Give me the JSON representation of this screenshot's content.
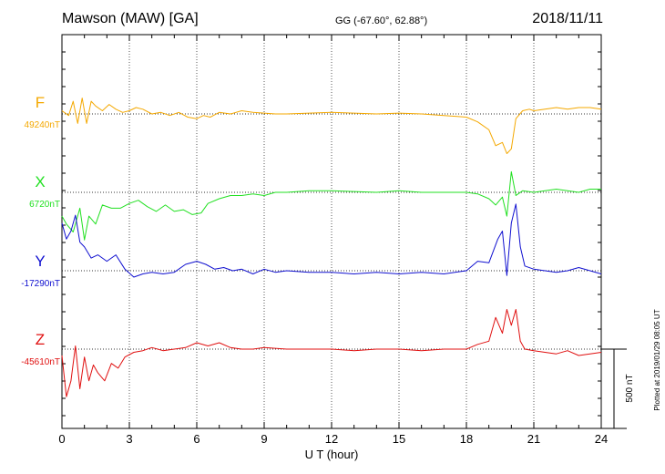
{
  "header": {
    "station": "Mawson (MAW)  [GA]",
    "coords": "GG (-67.60°,  62.88°)",
    "date": "2018/11/11"
  },
  "footer": {
    "plotted": "Plotted at 2019/01/29 08:05 UT",
    "scale_label": "500 nT"
  },
  "colors": {
    "F": "#f4a800",
    "X": "#22e022",
    "Y": "#1010d0",
    "Z": "#e01010"
  },
  "chart_data": {
    "type": "line",
    "xlabel": "U T (hour)",
    "xlim": [
      0,
      24
    ],
    "x_ticks": [
      "0",
      "3",
      "6",
      "9",
      "12",
      "15",
      "18",
      "21",
      "24"
    ],
    "scale_nT": 500,
    "series": [
      {
        "name": "F",
        "baseline_label": "49240nT",
        "x": [
          0,
          0.3,
          0.5,
          0.7,
          0.9,
          1.1,
          1.3,
          1.5,
          1.8,
          2.1,
          2.4,
          2.7,
          3.0,
          3.3,
          3.6,
          4.0,
          4.4,
          4.8,
          5.2,
          5.6,
          6.0,
          6.3,
          6.6,
          7.0,
          7.5,
          8.0,
          8.5,
          9.0,
          9.5,
          10,
          11,
          12,
          13,
          14,
          15,
          16,
          17,
          18,
          18.5,
          19.0,
          19.3,
          19.6,
          19.8,
          20.0,
          20.2,
          20.5,
          20.8,
          21.0,
          21.5,
          22.0,
          22.5,
          23.0,
          23.5,
          24
        ],
        "y": [
          20,
          -10,
          80,
          -60,
          100,
          -60,
          80,
          50,
          20,
          60,
          30,
          10,
          20,
          40,
          30,
          0,
          10,
          -10,
          10,
          -20,
          -30,
          -10,
          -20,
          10,
          0,
          20,
          10,
          5,
          0,
          0,
          5,
          10,
          5,
          0,
          5,
          0,
          -10,
          -20,
          -50,
          -100,
          -200,
          -180,
          -250,
          -220,
          -30,
          20,
          30,
          20,
          30,
          40,
          30,
          40,
          40,
          30
        ]
      },
      {
        "name": "X",
        "baseline_label": "6720nT",
        "x": [
          0,
          0.2,
          0.5,
          0.8,
          1.0,
          1.2,
          1.5,
          1.8,
          2.2,
          2.6,
          3.0,
          3.4,
          3.8,
          4.2,
          4.6,
          5.0,
          5.4,
          5.8,
          6.2,
          6.5,
          7.0,
          7.5,
          8.0,
          8.5,
          9.0,
          9.5,
          10,
          11,
          12,
          13,
          14,
          15,
          16,
          17,
          18,
          18.5,
          19.0,
          19.3,
          19.6,
          19.8,
          20.0,
          20.2,
          20.5,
          21.0,
          21.5,
          22.0,
          22.5,
          23.0,
          23.5,
          24
        ],
        "y": [
          -150,
          -200,
          -250,
          -100,
          -300,
          -150,
          -200,
          -80,
          -100,
          -100,
          -70,
          -50,
          -90,
          -120,
          -80,
          -120,
          -110,
          -140,
          -130,
          -70,
          -40,
          -20,
          -20,
          -10,
          -20,
          0,
          0,
          10,
          10,
          5,
          0,
          10,
          0,
          0,
          0,
          -10,
          -40,
          -80,
          -30,
          -150,
          130,
          -20,
          10,
          0,
          10,
          20,
          10,
          0,
          20,
          20
        ]
      },
      {
        "name": "Y",
        "baseline_label": "-17290nT",
        "x": [
          0,
          0.2,
          0.4,
          0.6,
          0.8,
          1.0,
          1.3,
          1.6,
          2.0,
          2.4,
          2.8,
          3.2,
          3.6,
          4.0,
          4.5,
          5.0,
          5.5,
          6.0,
          6.4,
          6.8,
          7.2,
          7.6,
          8.0,
          8.5,
          9.0,
          9.5,
          10,
          11,
          12,
          13,
          14,
          15,
          16,
          17,
          18,
          18.5,
          19.0,
          19.4,
          19.6,
          19.8,
          20.0,
          20.2,
          20.4,
          20.6,
          21.0,
          21.5,
          22.0,
          22.5,
          23.0,
          23.5,
          24
        ],
        "y": [
          300,
          200,
          250,
          350,
          180,
          150,
          80,
          100,
          60,
          100,
          10,
          -40,
          -20,
          -10,
          -20,
          -10,
          40,
          60,
          40,
          10,
          20,
          0,
          10,
          -20,
          10,
          -10,
          0,
          -10,
          -10,
          -20,
          -10,
          -20,
          -10,
          -20,
          0,
          60,
          50,
          200,
          250,
          -30,
          300,
          420,
          150,
          30,
          10,
          0,
          -10,
          0,
          20,
          0,
          -20
        ]
      },
      {
        "name": "Z",
        "baseline_label": "-45610nT",
        "x": [
          0,
          0.2,
          0.4,
          0.6,
          0.8,
          1.0,
          1.2,
          1.4,
          1.6,
          1.9,
          2.2,
          2.5,
          2.8,
          3.2,
          3.6,
          4.0,
          4.5,
          5.0,
          5.5,
          6.0,
          6.5,
          7.0,
          7.5,
          8.0,
          8.5,
          9.0,
          10,
          11,
          12,
          13,
          14,
          15,
          16,
          17,
          18,
          18.5,
          19.0,
          19.3,
          19.6,
          19.8,
          20.0,
          20.2,
          20.4,
          20.6,
          21.0,
          21.5,
          22.0,
          22.5,
          23.0,
          23.5,
          24
        ],
        "y": [
          -40,
          -300,
          -200,
          20,
          -250,
          -50,
          -200,
          -100,
          -150,
          -200,
          -90,
          -120,
          -50,
          -20,
          -10,
          10,
          -10,
          0,
          10,
          40,
          20,
          40,
          10,
          0,
          0,
          10,
          0,
          0,
          0,
          -10,
          0,
          0,
          -10,
          0,
          0,
          30,
          50,
          200,
          100,
          250,
          150,
          250,
          50,
          0,
          -10,
          -20,
          -30,
          -10,
          -40,
          -30,
          -20
        ]
      }
    ]
  }
}
